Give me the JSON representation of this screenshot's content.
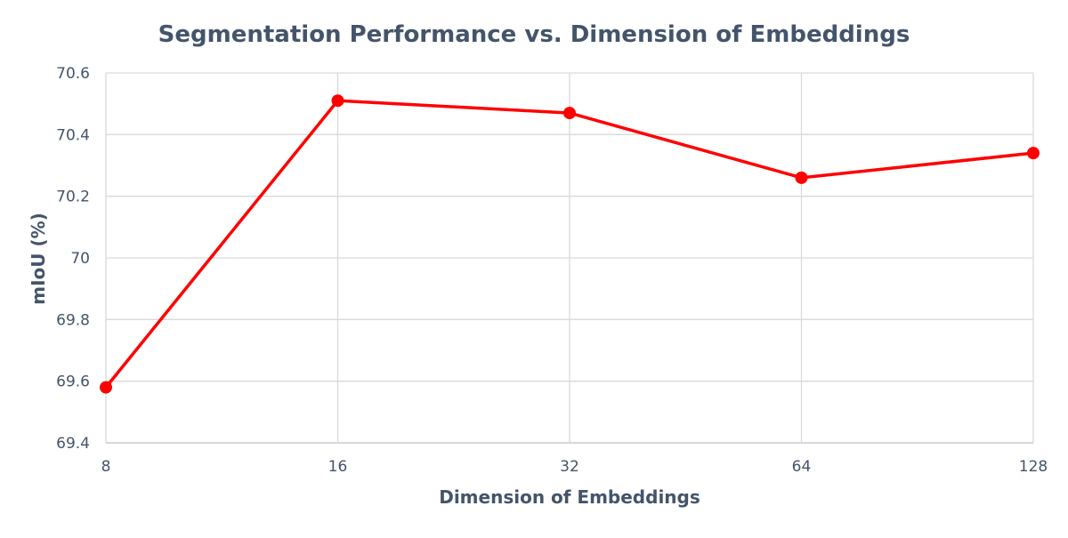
{
  "chart_data": {
    "type": "line",
    "title": "Segmentation Performance vs. Dimension of Embeddings",
    "xlabel": "Dimension of Embeddings",
    "ylabel": "mIoU (%)",
    "categories": [
      "8",
      "16",
      "32",
      "64",
      "128"
    ],
    "series": [
      {
        "name": "mIoU",
        "values": [
          69.58,
          70.51,
          70.47,
          70.26,
          70.34
        ],
        "color": "#ff0000"
      }
    ],
    "ylim": [
      69.4,
      70.6
    ],
    "yticks": [
      69.4,
      69.6,
      69.8,
      70,
      70.2,
      70.4,
      70.6
    ],
    "ytick_labels": [
      "69.4",
      "69.6",
      "69.8",
      "70",
      "70.2",
      "70.4",
      "70.6"
    ],
    "grid": true,
    "legend": "none"
  }
}
